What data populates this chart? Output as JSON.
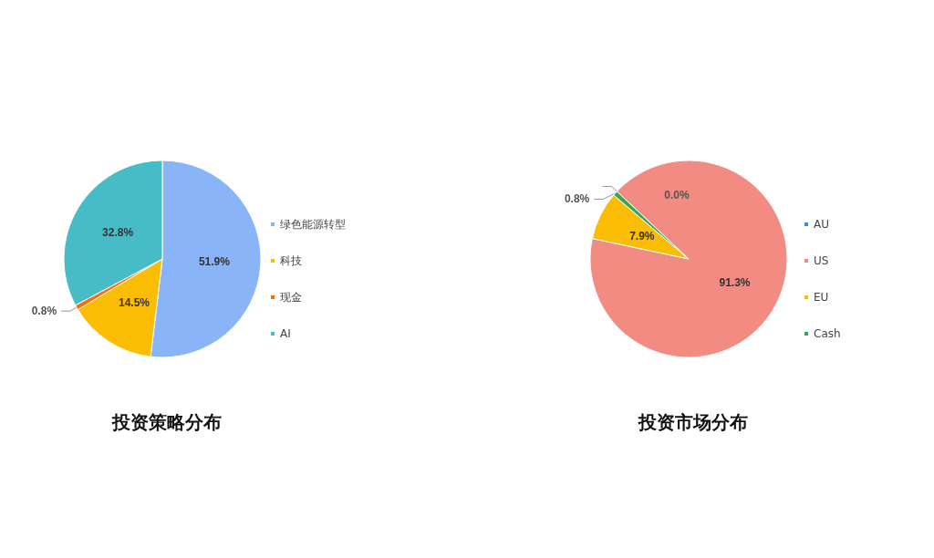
{
  "chart_data": [
    {
      "type": "pie",
      "title": "投资策略分布",
      "categories": [
        "绿色能源转型",
        "科技",
        "现金",
        "AI"
      ],
      "values": [
        51.9,
        14.5,
        0.8,
        32.8
      ],
      "value_labels": [
        "51.9%",
        "14.5%",
        "0.8%",
        "32.8%"
      ],
      "colors": [
        "#8ab4f8",
        "#fbbc04",
        "#ff6d01",
        "#46bdc6"
      ],
      "legend": "right"
    },
    {
      "type": "pie",
      "title": "投资市场分布",
      "categories": [
        "AU",
        "US",
        "EU",
        "Cash"
      ],
      "values": [
        0.0,
        91.3,
        7.9,
        0.8
      ],
      "value_labels": [
        "0.0%",
        "91.3%",
        "7.9%",
        "0.8%"
      ],
      "colors": [
        "#4285f4",
        "#f28b82",
        "#fbbc04",
        "#34a853"
      ],
      "legend": "right"
    }
  ]
}
